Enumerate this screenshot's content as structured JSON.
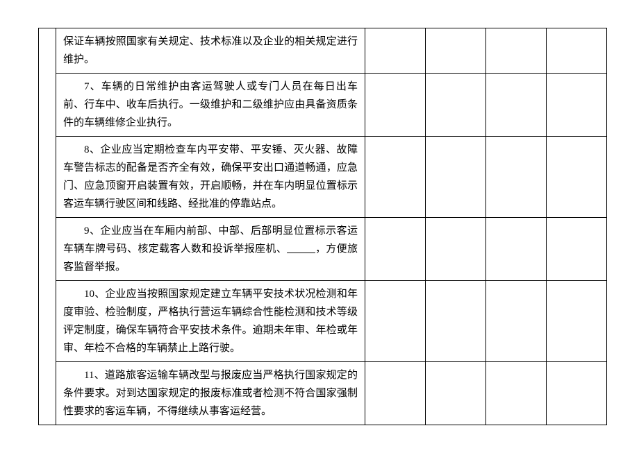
{
  "table": {
    "rows": [
      {
        "paragraphs": [
          {
            "text": "保证车辆按照国家有关规定、技术标准以及企业的相关规定进行维护。",
            "indented": false
          }
        ]
      },
      {
        "paragraphs": [
          {
            "text": "7、车辆的日常维护由客运驾驶人或专门人员在每日出车前、行车中、收车后执行。一级维护和二级维护应由具备资质条件的车辆维修企业执行。",
            "indented": true
          }
        ]
      },
      {
        "paragraphs": [
          {
            "text": "8、企业应当定期检查车内平安带、平安锤、灭火器、故障车警告标志的配备是否齐全有效，确保平安出口通道畅通，应急门、应急顶窗开启装置有效，开启顺畅，并在车内明显位置标示客运车辆行驶区间和线路、经批准的停靠站点。",
            "indented": true
          }
        ]
      },
      {
        "paragraphs": [
          {
            "text": "9、企业应当在车厢内前部、中部、后部明显位置标示客运车辆车牌号码、核定载客人数和投诉举报座机、",
            "indented": true,
            "hasBlank": true,
            "blankText": "          ",
            "afterBlank": "，方便旅客监督举报。"
          }
        ]
      },
      {
        "paragraphs": [
          {
            "text": "10、企业应当按照国家规定建立车辆平安技术状况检测和年度审验、检验制度，严格执行营运车辆综合性能检测和技术等级评定制度，确保车辆符合平安技术条件。逾期未年审、年检或年审、年检不合格的车辆禁止上路行驶。",
            "indented": true
          }
        ]
      },
      {
        "paragraphs": [
          {
            "text": "11、道路旅客运输车辆改型与报废应当严格执行国家规定的条件要求。对到达国家规定的报废标准或者检测不符合国家强制性要求的客运车辆，不得继续从事客运经营。",
            "indented": true
          }
        ]
      }
    ],
    "columns": {
      "col1_width": 25,
      "col2_width": 445,
      "col3_width": 87,
      "col4_width": 87,
      "col5_width": 87,
      "col6_width": 87
    },
    "styling": {
      "font_family": "SimSun",
      "font_size": 15,
      "line_height": 26,
      "text_color": "#000000",
      "border_color": "#000000",
      "background_color": "#ffffff",
      "text_indent_em": 2
    }
  }
}
